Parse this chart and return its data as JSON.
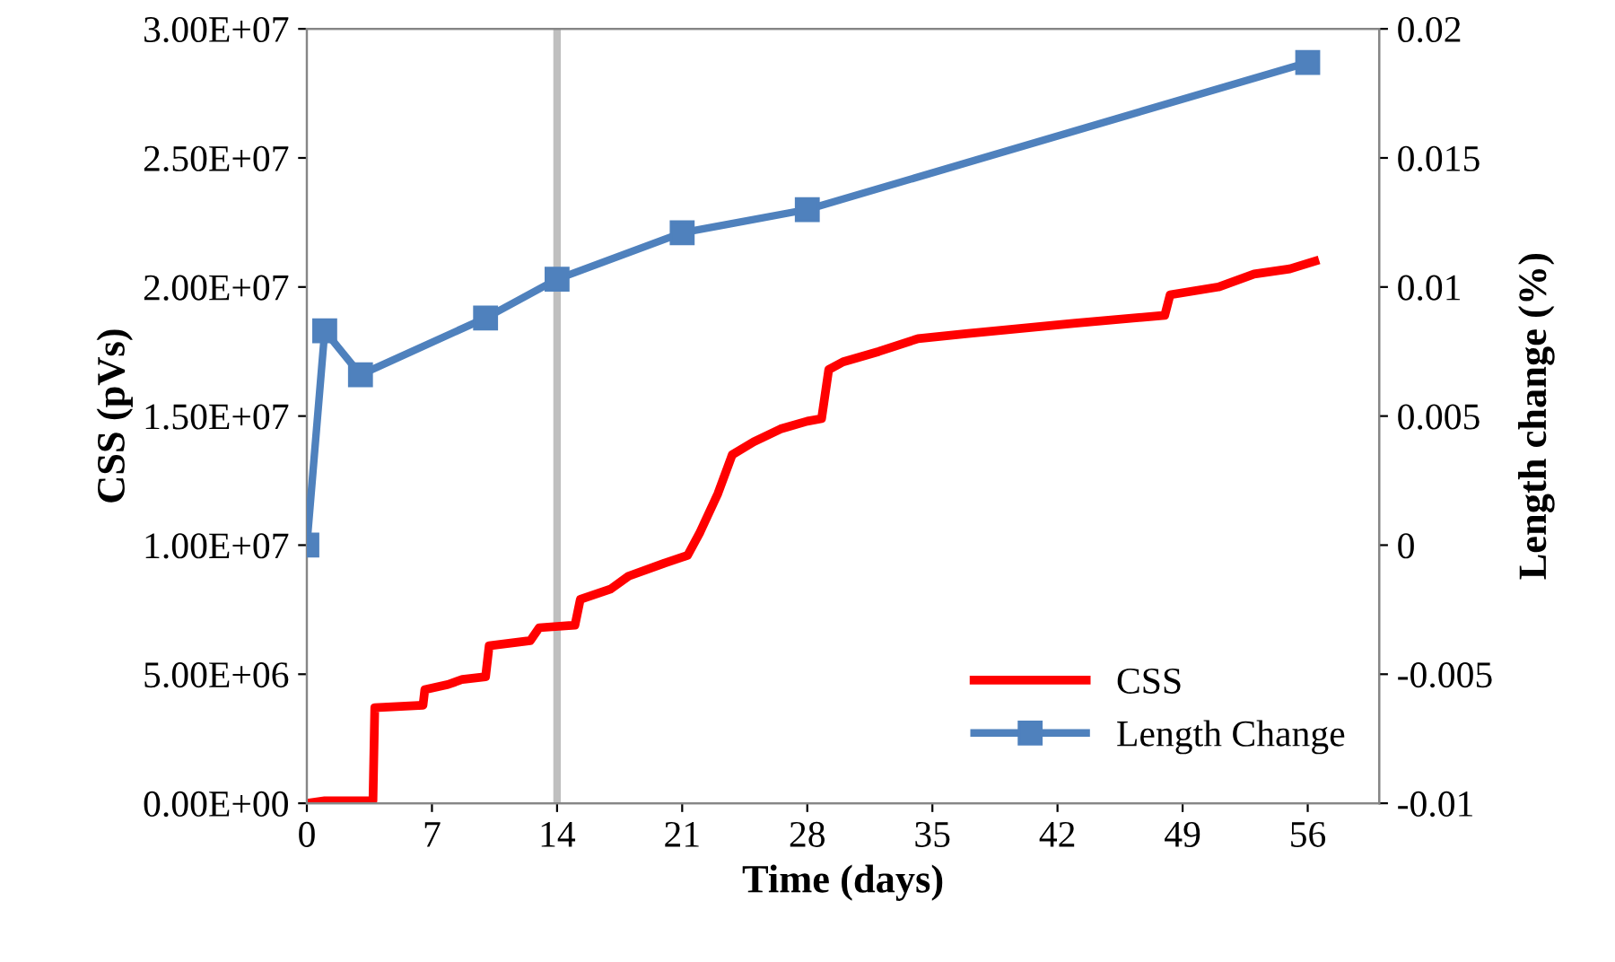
{
  "chart_data": {
    "type": "line",
    "xlabel": "Time (days)",
    "ylabel": "CSS (pVs)",
    "y2label": "Length change (%)",
    "xlim": [
      0,
      60
    ],
    "xticks": [
      0,
      7,
      14,
      21,
      28,
      35,
      42,
      49,
      56
    ],
    "ylim": [
      0,
      30000000
    ],
    "yticks": [
      {
        "value": 0,
        "label": "0.00E+00"
      },
      {
        "value": 5000000,
        "label": "5.00E+06"
      },
      {
        "value": 10000000,
        "label": "1.00E+07"
      },
      {
        "value": 15000000,
        "label": "1.50E+07"
      },
      {
        "value": 20000000,
        "label": "2.00E+07"
      },
      {
        "value": 25000000,
        "label": "2.50E+07"
      },
      {
        "value": 30000000,
        "label": "3.00E+07"
      }
    ],
    "y2lim": [
      -0.01,
      0.02
    ],
    "y2ticks": [
      -0.01,
      -0.005,
      0,
      0.005,
      0.01,
      0.015,
      0.02
    ],
    "grid": false,
    "legend": "bottom right",
    "ref_lines": [
      {
        "axis": "x",
        "value": 14,
        "color": "#bfbfbf"
      }
    ],
    "series": [
      {
        "name": "CSS",
        "color": "#ff0000",
        "marker": "none",
        "x": [
          0,
          1,
          3.7,
          3.8,
          6.5,
          6.6,
          7.9,
          8.7,
          10,
          10.2,
          12.5,
          13,
          15,
          15.3,
          17,
          18,
          20,
          21.3,
          22,
          23,
          23.8,
          25,
          26.5,
          28,
          28.8,
          29.2,
          30,
          32,
          34.2,
          37,
          40,
          43,
          48,
          48.3,
          51,
          53,
          55,
          56.4
        ],
        "values": [
          0,
          100000,
          100000,
          3700000,
          3800000,
          4400000,
          4600000,
          4800000,
          4900000,
          6100000,
          6300000,
          6800000,
          6900000,
          7900000,
          8300000,
          8800000,
          9300000,
          9600000,
          10500000,
          12000000,
          13500000,
          14000000,
          14500000,
          14800000,
          14900000,
          16800000,
          17100000,
          17500000,
          18000000,
          18200000,
          18400000,
          18600000,
          18900000,
          19700000,
          20000000,
          20500000,
          20700000,
          21000000
        ]
      },
      {
        "name": "Length Change",
        "color": "#4f81bd",
        "marker": "square",
        "axis": "y2",
        "x": [
          0,
          1,
          3,
          10,
          14,
          21,
          28,
          56
        ],
        "values": [
          0,
          0.0083,
          0.0066,
          0.0088,
          0.0103,
          0.0121,
          0.013,
          0.0187
        ]
      }
    ]
  }
}
